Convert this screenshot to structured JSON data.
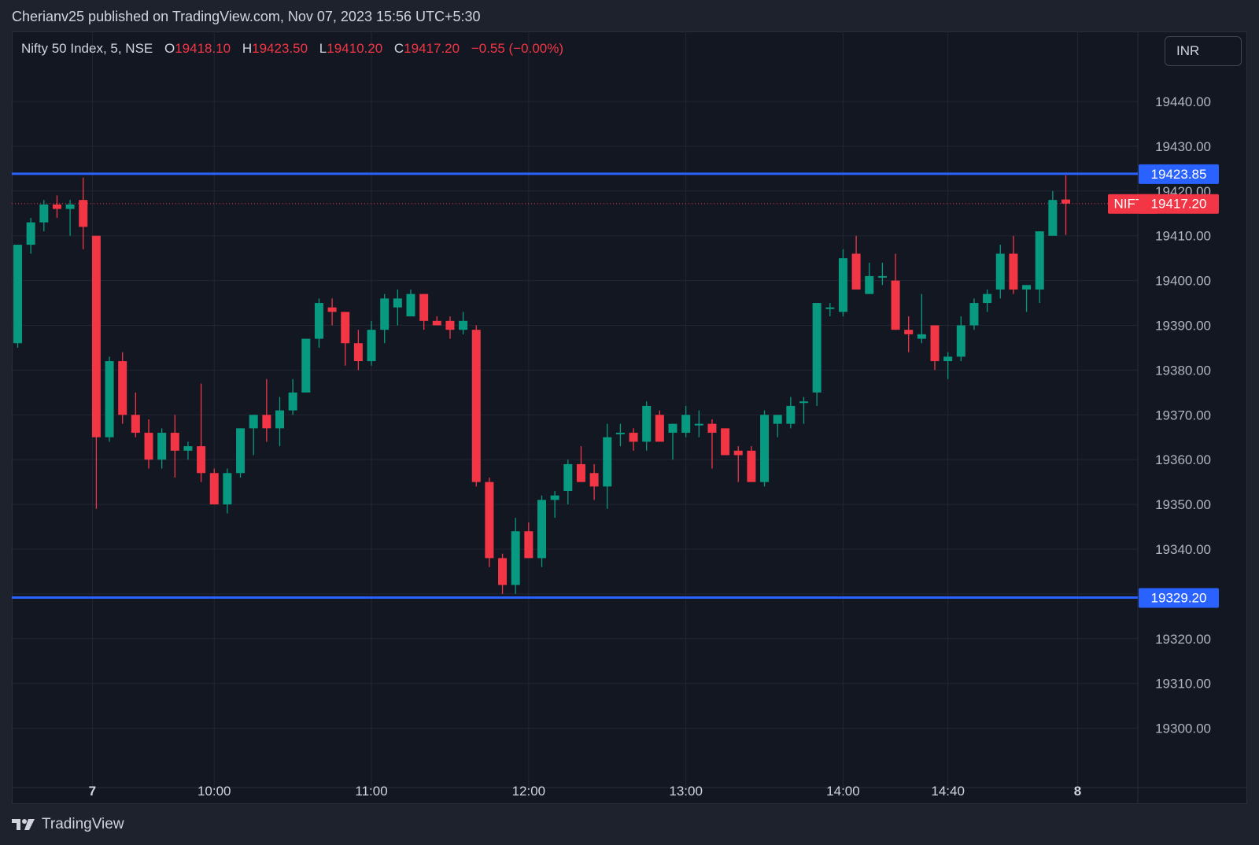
{
  "header": {
    "published_line": "Cherianv25 published on TradingView.com, Nov 07, 2023 15:56 UTC+5:30"
  },
  "legend": {
    "symbol": "Nifty 50 Index, 5, NSE",
    "o_label": "O",
    "o_value": "19418.10",
    "h_label": "H",
    "h_value": "19423.50",
    "l_label": "L",
    "l_value": "19410.20",
    "c_label": "C",
    "c_value": "19417.20",
    "change": "−0.55 (−0.00%)"
  },
  "currency": "INR",
  "footer": {
    "brand": "TradingView"
  },
  "colors": {
    "up": "#089981",
    "down": "#f23645",
    "hline": "#2962ff",
    "background": "#131722",
    "grid": "#232632",
    "axis_text": "#b2b5be"
  },
  "chart_data": {
    "type": "candlestick",
    "title": "",
    "ylim": [
      19293,
      19452
    ],
    "yticks": [
      "19440.00",
      "19430.00",
      "19420.00",
      "19410.00",
      "19400.00",
      "19390.00",
      "19380.00",
      "19370.00",
      "19360.00",
      "19350.00",
      "19340.00",
      "19330.00",
      "19320.00",
      "19310.00",
      "19300.00"
    ],
    "xticks": [
      {
        "label": "7",
        "index": 5.7,
        "bold": true
      },
      {
        "label": "10:00",
        "index": 15
      },
      {
        "label": "11:00",
        "index": 27
      },
      {
        "label": "12:00",
        "index": 39
      },
      {
        "label": "13:00",
        "index": 51
      },
      {
        "label": "14:00",
        "index": 63
      },
      {
        "label": "14:40",
        "index": 71
      },
      {
        "label": "8",
        "index": 80.9,
        "bold": true
      }
    ],
    "horizontal_lines": [
      {
        "value": 19423.85,
        "label": "19423.85"
      },
      {
        "value": 19329.2,
        "label": "19329.20"
      }
    ],
    "last_price": {
      "value": 19417.2,
      "symbol": "NIFTY",
      "label": "19417.20"
    },
    "candles": [
      [
        19386,
        19408,
        19385,
        19408
      ],
      [
        19408,
        19414,
        19406,
        19413
      ],
      [
        19413,
        19418,
        19411,
        19417
      ],
      [
        19417,
        19419,
        19414,
        19416
      ],
      [
        19416,
        19418,
        19410,
        19417
      ],
      [
        19418,
        19423,
        19407,
        19412
      ],
      [
        19410,
        19410,
        19349,
        19365
      ],
      [
        19365,
        19383,
        19364,
        19382
      ],
      [
        19382,
        19384,
        19368,
        19370
      ],
      [
        19370,
        19375,
        19365,
        19366
      ],
      [
        19366,
        19369,
        19358,
        19360
      ],
      [
        19360,
        19367,
        19358,
        19366
      ],
      [
        19366,
        19370,
        19356,
        19362
      ],
      [
        19362,
        19364,
        19360,
        19363
      ],
      [
        19363,
        19377,
        19355,
        19357
      ],
      [
        19357,
        19358,
        19350,
        19350
      ],
      [
        19350,
        19358,
        19348,
        19357
      ],
      [
        19357,
        19367,
        19356,
        19367
      ],
      [
        19367,
        19370,
        19361,
        19370
      ],
      [
        19370,
        19378,
        19364,
        19367
      ],
      [
        19367,
        19374,
        19363,
        19371
      ],
      [
        19371,
        19378,
        19370,
        19375
      ],
      [
        19375,
        19387,
        19375,
        19387
      ],
      [
        19387,
        19396,
        19385,
        19395
      ],
      [
        19394,
        19396,
        19390,
        19393
      ],
      [
        19393,
        19393,
        19381,
        19386
      ],
      [
        19386,
        19389,
        19380,
        19382
      ],
      [
        19382,
        19391,
        19381,
        19389
      ],
      [
        19389,
        19397,
        19386,
        19396
      ],
      [
        19394,
        19398,
        19390,
        19396
      ],
      [
        19392,
        19398,
        19392,
        19397
      ],
      [
        19397,
        19397,
        19389,
        19391
      ],
      [
        19391,
        19392,
        19390,
        19390
      ],
      [
        19391,
        19392,
        19387,
        19389
      ],
      [
        19389,
        19393,
        19388,
        19391
      ],
      [
        19389,
        19390,
        19354,
        19355
      ],
      [
        19355,
        19356,
        19336,
        19338
      ],
      [
        19338,
        19339,
        19330,
        19332
      ],
      [
        19332,
        19347,
        19330,
        19344
      ],
      [
        19344,
        19346,
        19339,
        19338
      ],
      [
        19338,
        19352,
        19336,
        19351
      ],
      [
        19351,
        19353,
        19347,
        19352
      ],
      [
        19353,
        19360,
        19350,
        19359
      ],
      [
        19359,
        19363,
        19355,
        19355
      ],
      [
        19357,
        19359,
        19351,
        19354
      ],
      [
        19354,
        19368,
        19349,
        19365
      ],
      [
        19366,
        19368,
        19363,
        19366
      ],
      [
        19366,
        19367,
        19362,
        19364
      ],
      [
        19364,
        19373,
        19362,
        19372
      ],
      [
        19370,
        19371,
        19364,
        19364
      ],
      [
        19366,
        19368,
        19360,
        19368
      ],
      [
        19366,
        19372,
        19365,
        19370
      ],
      [
        19368,
        19371,
        19365,
        19368
      ],
      [
        19368,
        19369,
        19358,
        19366
      ],
      [
        19367,
        19367,
        19361,
        19361
      ],
      [
        19362,
        19363,
        19355,
        19361
      ],
      [
        19362,
        19363,
        19355,
        19355
      ],
      [
        19355,
        19371,
        19354,
        19370
      ],
      [
        19368,
        19369,
        19365,
        19370
      ],
      [
        19368,
        19374,
        19367,
        19372
      ],
      [
        19373,
        19374,
        19368,
        19373
      ],
      [
        19375,
        19395,
        19372,
        19395
      ],
      [
        19394,
        19395,
        19392,
        19394
      ],
      [
        19393,
        19407,
        19392,
        19405
      ],
      [
        19406,
        19410,
        19398,
        19398
      ],
      [
        19397,
        19404,
        19397,
        19401
      ],
      [
        19401,
        19404,
        19399,
        19401
      ],
      [
        19400,
        19406,
        19389,
        19389
      ],
      [
        19389,
        19392,
        19384,
        19388
      ],
      [
        19387,
        19397,
        19386,
        19388
      ],
      [
        19390,
        19390,
        19380,
        19382
      ],
      [
        19382,
        19384,
        19378,
        19383
      ],
      [
        19383,
        19392,
        19382,
        19390
      ],
      [
        19390,
        19396,
        19389,
        19395
      ],
      [
        19395,
        19398,
        19393,
        19397
      ],
      [
        19398,
        19408,
        19396,
        19406
      ],
      [
        19406,
        19410,
        19397,
        19398
      ],
      [
        19398,
        19399,
        19393,
        19399
      ],
      [
        19398,
        19411,
        19395,
        19411
      ],
      [
        19410,
        19420,
        19410,
        19418
      ],
      [
        19418.1,
        19423.5,
        19410.2,
        19417.2
      ]
    ]
  }
}
